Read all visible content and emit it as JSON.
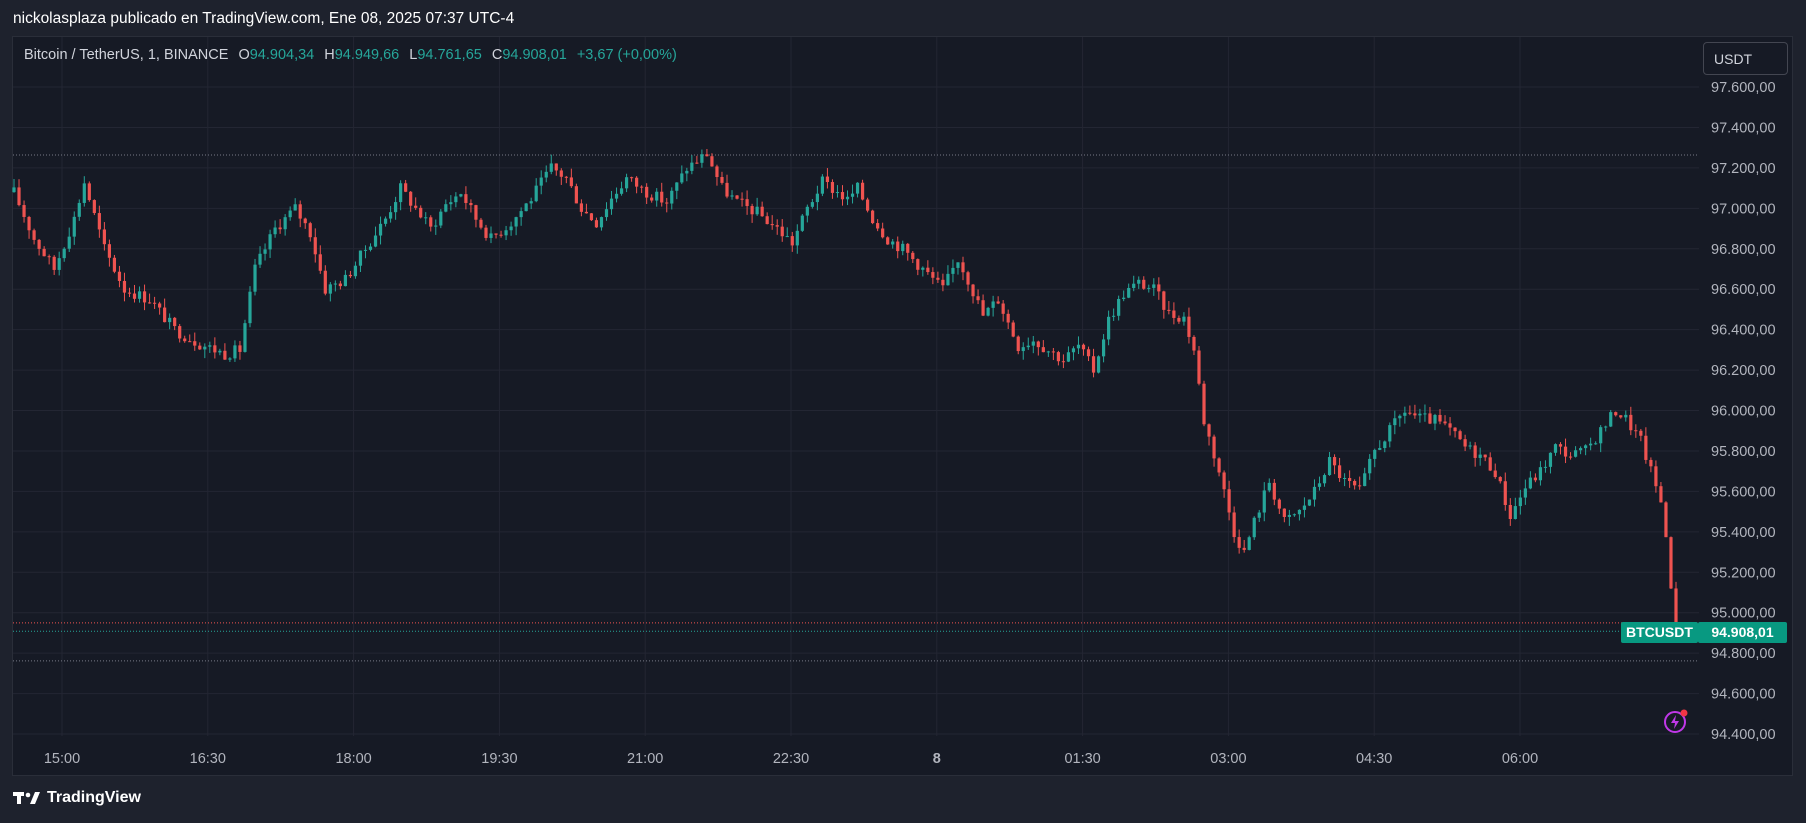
{
  "header": {
    "text": "nickolasplaza publicado en TradingView.com, Ene 08, 2025 07:37 UTC-4"
  },
  "legend": {
    "symbol": "Bitcoin / TetherUS, 1, BINANCE",
    "open_label": "O",
    "open": "94.904,34",
    "high_label": "H",
    "high": "94.949,66",
    "low_label": "L",
    "low": "94.761,65",
    "close_label": "C",
    "close": "94.908,01",
    "change": "+3,67 (+0,00%)"
  },
  "unit_button": "USDT",
  "price_tag": {
    "symbol": "BTCUSDT",
    "price": "94.908,01"
  },
  "footer": {
    "brand": "TradingView"
  },
  "colors": {
    "up": "#26a69a",
    "down": "#ef5350",
    "background": "#161a25",
    "grid": "#232633",
    "tag": "#089981"
  },
  "chart_data": {
    "type": "candlestick",
    "ylim": [
      94300,
      97850
    ],
    "y_ticks": [
      94400,
      94600,
      94800,
      95000,
      95200,
      95400,
      95600,
      95800,
      96000,
      96200,
      96400,
      96600,
      96800,
      97000,
      97200,
      97400,
      97600
    ],
    "y_tick_labels": [
      "94.400,00",
      "94.600,00",
      "94.800,00",
      "95.000,00",
      "95.200,00",
      "95.400,00",
      "95.600,00",
      "95.800,00",
      "96.000,00",
      "96.200,00",
      "96.400,00",
      "96.600,00",
      "96.800,00",
      "97.000,00",
      "97.200,00",
      "97.400,00",
      "97.600,00"
    ],
    "x_tick_labels": [
      "15:00",
      "16:30",
      "18:00",
      "19:30",
      "21:00",
      "22:30",
      "8",
      "01:30",
      "03:00",
      "04:30",
      "06:00"
    ],
    "x_tick_bold": [
      false,
      false,
      false,
      false,
      false,
      false,
      true,
      false,
      false,
      false,
      false
    ],
    "path_points": [
      [
        0,
        97080
      ],
      [
        4,
        96850
      ],
      [
        8,
        96700
      ],
      [
        12,
        96950
      ],
      [
        14,
        97130
      ],
      [
        18,
        96800
      ],
      [
        22,
        96600
      ],
      [
        27,
        96550
      ],
      [
        32,
        96400
      ],
      [
        37,
        96330
      ],
      [
        42,
        96280
      ],
      [
        45,
        96300
      ],
      [
        48,
        96700
      ],
      [
        52,
        96900
      ],
      [
        56,
        97000
      ],
      [
        59,
        96880
      ],
      [
        62,
        96600
      ],
      [
        66,
        96650
      ],
      [
        70,
        96800
      ],
      [
        74,
        96950
      ],
      [
        77,
        97100
      ],
      [
        80,
        97000
      ],
      [
        83,
        96900
      ],
      [
        86,
        97020
      ],
      [
        89,
        97080
      ],
      [
        92,
        96950
      ],
      [
        95,
        96850
      ],
      [
        99,
        96930
      ],
      [
        103,
        97050
      ],
      [
        107,
        97200
      ],
      [
        110,
        97150
      ],
      [
        113,
        97000
      ],
      [
        116,
        96930
      ],
      [
        119,
        97050
      ],
      [
        122,
        97150
      ],
      [
        126,
        97080
      ],
      [
        130,
        97030
      ],
      [
        134,
        97200
      ],
      [
        138,
        97270
      ],
      [
        141,
        97100
      ],
      [
        144,
        97030
      ],
      [
        148,
        96980
      ],
      [
        152,
        96900
      ],
      [
        155,
        96830
      ],
      [
        158,
        97000
      ],
      [
        161,
        97130
      ],
      [
        164,
        97080
      ],
      [
        166,
        97040
      ],
      [
        168,
        97100
      ],
      [
        171,
        96950
      ],
      [
        174,
        96850
      ],
      [
        177,
        96800
      ],
      [
        181,
        96700
      ],
      [
        185,
        96600
      ],
      [
        188,
        96750
      ],
      [
        190,
        96650
      ],
      [
        193,
        96470
      ],
      [
        196,
        96550
      ],
      [
        200,
        96320
      ],
      [
        203,
        96350
      ],
      [
        206,
        96300
      ],
      [
        209,
        96250
      ],
      [
        212,
        96320
      ],
      [
        215,
        96200
      ],
      [
        218,
        96450
      ],
      [
        221,
        96580
      ],
      [
        224,
        96630
      ],
      [
        227,
        96600
      ],
      [
        230,
        96480
      ],
      [
        233,
        96460
      ],
      [
        235,
        96300
      ],
      [
        237,
        95950
      ],
      [
        240,
        95700
      ],
      [
        243,
        95400
      ],
      [
        245,
        95300
      ],
      [
        247,
        95450
      ],
      [
        250,
        95650
      ],
      [
        253,
        95450
      ],
      [
        256,
        95500
      ],
      [
        259,
        95600
      ],
      [
        262,
        95750
      ],
      [
        265,
        95650
      ],
      [
        268,
        95600
      ],
      [
        271,
        95800
      ],
      [
        274,
        95900
      ],
      [
        277,
        96000
      ],
      [
        280,
        95960
      ],
      [
        283,
        95950
      ],
      [
        286,
        95900
      ],
      [
        289,
        95820
      ],
      [
        292,
        95780
      ],
      [
        295,
        95700
      ],
      [
        298,
        95480
      ],
      [
        301,
        95620
      ],
      [
        304,
        95700
      ],
      [
        307,
        95820
      ],
      [
        310,
        95780
      ],
      [
        313,
        95800
      ],
      [
        316,
        95900
      ],
      [
        319,
        96000
      ],
      [
        321,
        95960
      ],
      [
        324,
        95850
      ],
      [
        326,
        95700
      ],
      [
        328,
        95550
      ],
      [
        329,
        95400
      ],
      [
        330,
        95100
      ],
      [
        331,
        94908
      ]
    ]
  }
}
